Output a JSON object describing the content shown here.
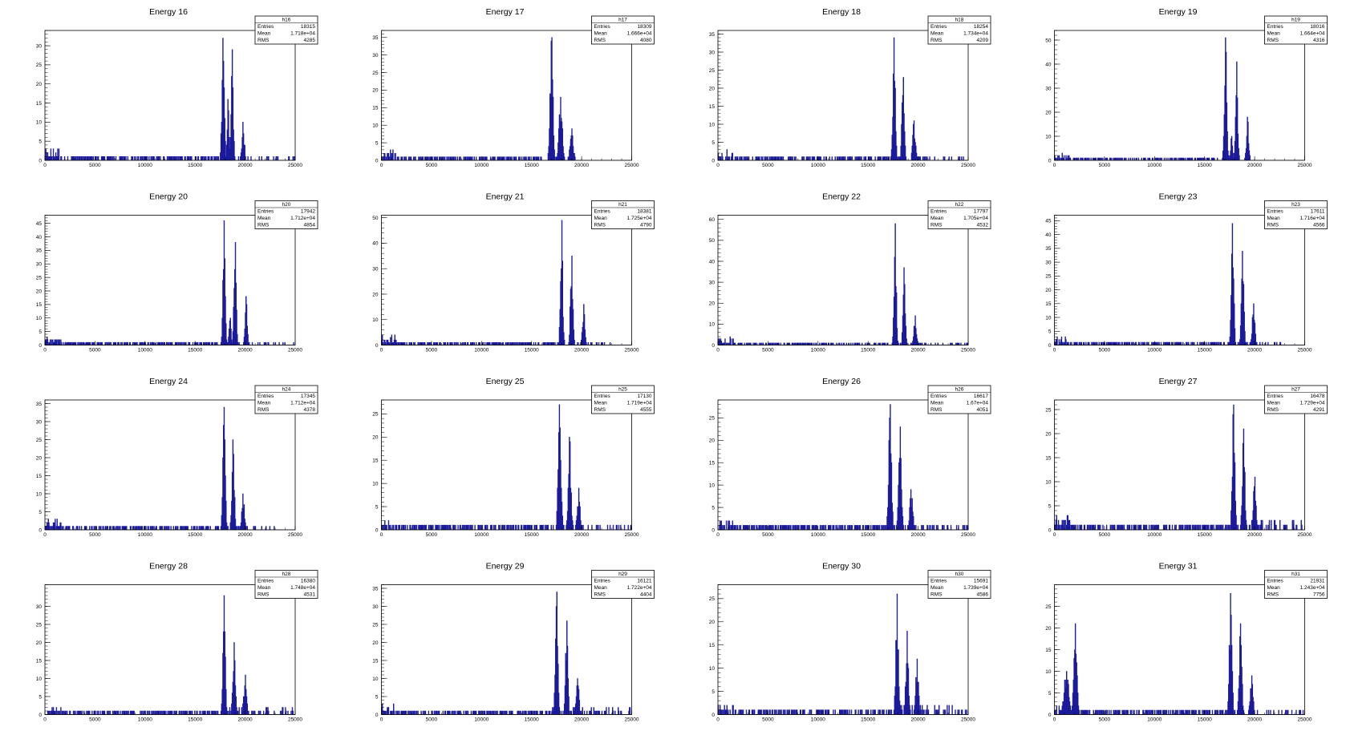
{
  "page": {
    "grid_columns": 4,
    "grid_rows": 4,
    "histogram_color": "#1a1a9a"
  },
  "chart_data": [
    {
      "type": "bar",
      "title": "Energy 16",
      "stats": {
        "name": "h16",
        "entries_label": "Entries",
        "entries": "18315",
        "mean_label": "Mean",
        "mean": "1.718e+04",
        "rms_label": "RMS",
        "rms": "4285"
      },
      "xlim": [
        0,
        25000
      ],
      "ylim": [
        0,
        34
      ],
      "yticks": [
        0,
        5,
        10,
        15,
        20,
        25,
        30
      ],
      "xticks": [
        0,
        5000,
        10000,
        15000,
        20000,
        25000
      ],
      "noise_max": 3,
      "noise_end": 17200,
      "tail_max": 1,
      "tail_end": 25000,
      "peaks": [
        {
          "x": 17800,
          "height": 32,
          "width": 120
        },
        {
          "x": 18700,
          "height": 29,
          "width": 110
        },
        {
          "x": 18300,
          "height": 16,
          "width": 100
        },
        {
          "x": 19800,
          "height": 10,
          "width": 120
        }
      ]
    },
    {
      "type": "bar",
      "title": "Energy 17",
      "stats": {
        "name": "h17",
        "entries_label": "Entries",
        "entries": "18309",
        "mean_label": "Mean",
        "mean": "1.666e+04",
        "rms_label": "RMS",
        "rms": "4080"
      },
      "xlim": [
        0,
        25000
      ],
      "ylim": [
        0,
        37
      ],
      "yticks": [
        0,
        5,
        10,
        15,
        20,
        25,
        30,
        35
      ],
      "xticks": [
        0,
        5000,
        10000,
        15000,
        20000,
        25000
      ],
      "noise_max": 3,
      "noise_end": 16000,
      "tail_max": 0,
      "tail_end": 20000,
      "peaks": [
        {
          "x": 17000,
          "height": 35,
          "width": 140
        },
        {
          "x": 17900,
          "height": 18,
          "width": 170
        },
        {
          "x": 19000,
          "height": 9,
          "width": 150
        }
      ]
    },
    {
      "type": "bar",
      "title": "Energy 18",
      "stats": {
        "name": "h18",
        "entries_label": "Entries",
        "entries": "18254",
        "mean_label": "Mean",
        "mean": "1.734e+04",
        "rms_label": "RMS",
        "rms": "4209"
      },
      "xlim": [
        0,
        25000
      ],
      "ylim": [
        0,
        36
      ],
      "yticks": [
        0,
        5,
        10,
        15,
        20,
        25,
        30,
        35
      ],
      "xticks": [
        0,
        5000,
        10000,
        15000,
        20000,
        25000
      ],
      "noise_max": 3,
      "noise_end": 16800,
      "tail_max": 1,
      "tail_end": 25000,
      "peaks": [
        {
          "x": 17600,
          "height": 34,
          "width": 120
        },
        {
          "x": 18500,
          "height": 23,
          "width": 120
        },
        {
          "x": 19600,
          "height": 11,
          "width": 140
        }
      ]
    },
    {
      "type": "bar",
      "title": "Energy 19",
      "stats": {
        "name": "h19",
        "entries_label": "Entries",
        "entries": "18016",
        "mean_label": "Mean",
        "mean": "1.664e+04",
        "rms_label": "RMS",
        "rms": "4316"
      },
      "xlim": [
        0,
        25000
      ],
      "ylim": [
        0,
        54
      ],
      "yticks": [
        0,
        10,
        20,
        30,
        40,
        50
      ],
      "xticks": [
        0,
        5000,
        10000,
        15000,
        20000,
        25000
      ],
      "noise_max": 3,
      "noise_end": 16300,
      "tail_max": 0,
      "tail_end": 21500,
      "peaks": [
        {
          "x": 17100,
          "height": 51,
          "width": 120
        },
        {
          "x": 18200,
          "height": 41,
          "width": 110
        },
        {
          "x": 19300,
          "height": 18,
          "width": 110
        },
        {
          "x": 17700,
          "height": 10,
          "width": 100
        }
      ]
    },
    {
      "type": "bar",
      "title": "Energy 20",
      "stats": {
        "name": "h20",
        "entries_label": "Entries",
        "entries": "17942",
        "mean_label": "Mean",
        "mean": "1.712e+04",
        "rms_label": "RMS",
        "rms": "4854"
      },
      "xlim": [
        0,
        25000
      ],
      "ylim": [
        0,
        48
      ],
      "yticks": [
        0,
        5,
        10,
        15,
        20,
        25,
        30,
        35,
        40,
        45
      ],
      "xticks": [
        0,
        5000,
        10000,
        15000,
        20000,
        25000
      ],
      "noise_max": 3,
      "noise_end": 17200,
      "tail_max": 1,
      "tail_end": 25000,
      "peaks": [
        {
          "x": 17900,
          "height": 46,
          "width": 110
        },
        {
          "x": 19000,
          "height": 38,
          "width": 110
        },
        {
          "x": 20100,
          "height": 18,
          "width": 110
        },
        {
          "x": 18500,
          "height": 10,
          "width": 100
        }
      ]
    },
    {
      "type": "bar",
      "title": "Energy 21",
      "stats": {
        "name": "h21",
        "entries_label": "Entries",
        "entries": "18381",
        "mean_label": "Mean",
        "mean": "1.725e+04",
        "rms_label": "RMS",
        "rms": "4790"
      },
      "xlim": [
        0,
        25000
      ],
      "ylim": [
        0,
        51
      ],
      "yticks": [
        0,
        10,
        20,
        30,
        40,
        50
      ],
      "xticks": [
        0,
        5000,
        10000,
        15000,
        20000,
        25000
      ],
      "noise_max": 4,
      "noise_end": 17300,
      "tail_max": 1,
      "tail_end": 23000,
      "peaks": [
        {
          "x": 18000,
          "height": 49,
          "width": 110
        },
        {
          "x": 19000,
          "height": 35,
          "width": 120
        },
        {
          "x": 20200,
          "height": 16,
          "width": 120
        }
      ]
    },
    {
      "type": "bar",
      "title": "Energy 22",
      "stats": {
        "name": "h22",
        "entries_label": "Entries",
        "entries": "17797",
        "mean_label": "Mean",
        "mean": "1.705e+04",
        "rms_label": "RMS",
        "rms": "4532"
      },
      "xlim": [
        0,
        25000
      ],
      "ylim": [
        0,
        62
      ],
      "yticks": [
        0,
        10,
        20,
        30,
        40,
        50,
        60
      ],
      "xticks": [
        0,
        5000,
        10000,
        15000,
        20000,
        25000
      ],
      "noise_max": 4,
      "noise_end": 17000,
      "tail_max": 1,
      "tail_end": 25000,
      "peaks": [
        {
          "x": 17700,
          "height": 58,
          "width": 110
        },
        {
          "x": 18600,
          "height": 37,
          "width": 110
        },
        {
          "x": 19700,
          "height": 14,
          "width": 130
        }
      ]
    },
    {
      "type": "bar",
      "title": "Energy 23",
      "stats": {
        "name": "h23",
        "entries_label": "Entries",
        "entries": "17611",
        "mean_label": "Mean",
        "mean": "1.716e+04",
        "rms_label": "RMS",
        "rms": "4566"
      },
      "xlim": [
        0,
        25000
      ],
      "ylim": [
        0,
        47
      ],
      "yticks": [
        0,
        5,
        10,
        15,
        20,
        25,
        30,
        35,
        40,
        45
      ],
      "xticks": [
        0,
        5000,
        10000,
        15000,
        20000,
        25000
      ],
      "noise_max": 3,
      "noise_end": 17000,
      "tail_max": 1,
      "tail_end": 23500,
      "peaks": [
        {
          "x": 17800,
          "height": 44,
          "width": 120
        },
        {
          "x": 18800,
          "height": 34,
          "width": 120
        },
        {
          "x": 19900,
          "height": 15,
          "width": 130
        }
      ]
    },
    {
      "type": "bar",
      "title": "Energy 24",
      "stats": {
        "name": "h24",
        "entries_label": "Entries",
        "entries": "17345",
        "mean_label": "Mean",
        "mean": "1.712e+04",
        "rms_label": "RMS",
        "rms": "4378"
      },
      "xlim": [
        0,
        25000
      ],
      "ylim": [
        0,
        36
      ],
      "yticks": [
        0,
        5,
        10,
        15,
        20,
        25,
        30,
        35
      ],
      "xticks": [
        0,
        5000,
        10000,
        15000,
        20000,
        25000
      ],
      "noise_max": 3,
      "noise_end": 17300,
      "tail_max": 1,
      "tail_end": 23000,
      "peaks": [
        {
          "x": 17900,
          "height": 34,
          "width": 120
        },
        {
          "x": 18800,
          "height": 25,
          "width": 120
        },
        {
          "x": 19800,
          "height": 10,
          "width": 130
        }
      ]
    },
    {
      "type": "bar",
      "title": "Energy 25",
      "stats": {
        "name": "h25",
        "entries_label": "Entries",
        "entries": "17130",
        "mean_label": "Mean",
        "mean": "1.719e+04",
        "rms_label": "RMS",
        "rms": "4555"
      },
      "xlim": [
        0,
        25000
      ],
      "ylim": [
        0,
        28
      ],
      "yticks": [
        0,
        5,
        10,
        15,
        20,
        25
      ],
      "xticks": [
        0,
        5000,
        10000,
        15000,
        20000,
        25000
      ],
      "noise_max": 2,
      "noise_end": 17200,
      "tail_max": 1,
      "tail_end": 25000,
      "peaks": [
        {
          "x": 17800,
          "height": 27,
          "width": 140
        },
        {
          "x": 18800,
          "height": 20,
          "width": 140
        },
        {
          "x": 19700,
          "height": 9,
          "width": 140
        }
      ]
    },
    {
      "type": "bar",
      "title": "Energy 26",
      "stats": {
        "name": "h26",
        "entries_label": "Entries",
        "entries": "16617",
        "mean_label": "Mean",
        "mean": "1.67e+04",
        "rms_label": "RMS",
        "rms": "4051"
      },
      "xlim": [
        0,
        25000
      ],
      "ylim": [
        0,
        29
      ],
      "yticks": [
        0,
        5,
        10,
        15,
        20,
        25
      ],
      "xticks": [
        0,
        5000,
        10000,
        15000,
        20000,
        25000
      ],
      "noise_max": 2,
      "noise_end": 16500,
      "tail_max": 1,
      "tail_end": 25000,
      "peaks": [
        {
          "x": 17200,
          "height": 28,
          "width": 140
        },
        {
          "x": 18200,
          "height": 23,
          "width": 140
        },
        {
          "x": 19300,
          "height": 9,
          "width": 150
        }
      ]
    },
    {
      "type": "bar",
      "title": "Energy 27",
      "stats": {
        "name": "h27",
        "entries_label": "Entries",
        "entries": "16478",
        "mean_label": "Mean",
        "mean": "1.729e+04",
        "rms_label": "RMS",
        "rms": "4291"
      },
      "xlim": [
        0,
        25000
      ],
      "ylim": [
        0,
        27
      ],
      "yticks": [
        0,
        5,
        10,
        15,
        20,
        25
      ],
      "xticks": [
        0,
        5000,
        10000,
        15000,
        20000,
        25000
      ],
      "noise_max": 3,
      "noise_end": 17300,
      "tail_max": 2,
      "tail_end": 25000,
      "peaks": [
        {
          "x": 17900,
          "height": 26,
          "width": 130
        },
        {
          "x": 18900,
          "height": 21,
          "width": 130
        },
        {
          "x": 20000,
          "height": 11,
          "width": 130
        }
      ]
    },
    {
      "type": "bar",
      "title": "Energy 28",
      "stats": {
        "name": "h28",
        "entries_label": "Entries",
        "entries": "16380",
        "mean_label": "Mean",
        "mean": "1.748e+04",
        "rms_label": "RMS",
        "rms": "4531"
      },
      "xlim": [
        0,
        25000
      ],
      "ylim": [
        0,
        36
      ],
      "yticks": [
        0,
        5,
        10,
        15,
        20,
        25,
        30
      ],
      "xticks": [
        0,
        5000,
        10000,
        15000,
        20000,
        25000
      ],
      "noise_max": 2,
      "noise_end": 17300,
      "tail_max": 2,
      "tail_end": 25000,
      "peaks": [
        {
          "x": 17900,
          "height": 33,
          "width": 120
        },
        {
          "x": 18900,
          "height": 20,
          "width": 130
        },
        {
          "x": 20000,
          "height": 11,
          "width": 140
        }
      ]
    },
    {
      "type": "bar",
      "title": "Energy 29",
      "stats": {
        "name": "h29",
        "entries_label": "Entries",
        "entries": "16121",
        "mean_label": "Mean",
        "mean": "1.722e+04",
        "rms_label": "RMS",
        "rms": "4404"
      },
      "xlim": [
        0,
        25000
      ],
      "ylim": [
        0,
        36
      ],
      "yticks": [
        0,
        5,
        10,
        15,
        20,
        25,
        30,
        35
      ],
      "xticks": [
        0,
        5000,
        10000,
        15000,
        20000,
        25000
      ],
      "noise_max": 3,
      "noise_end": 17000,
      "tail_max": 2,
      "tail_end": 25000,
      "peaks": [
        {
          "x": 17500,
          "height": 34,
          "width": 120
        },
        {
          "x": 18500,
          "height": 26,
          "width": 120
        },
        {
          "x": 19600,
          "height": 10,
          "width": 140
        }
      ]
    },
    {
      "type": "bar",
      "title": "Energy 30",
      "stats": {
        "name": "h30",
        "entries_label": "Entries",
        "entries": "15691",
        "mean_label": "Mean",
        "mean": "1.739e+04",
        "rms_label": "RMS",
        "rms": "4586"
      },
      "xlim": [
        0,
        25000
      ],
      "ylim": [
        0,
        28
      ],
      "yticks": [
        0,
        5,
        10,
        15,
        20,
        25
      ],
      "xticks": [
        0,
        5000,
        10000,
        15000,
        20000,
        25000
      ],
      "noise_max": 2,
      "noise_end": 17200,
      "tail_max": 2,
      "tail_end": 25000,
      "peaks": [
        {
          "x": 17900,
          "height": 26,
          "width": 130
        },
        {
          "x": 18900,
          "height": 18,
          "width": 130
        },
        {
          "x": 19900,
          "height": 12,
          "width": 140
        }
      ]
    },
    {
      "type": "bar",
      "title": "Energy 31",
      "stats": {
        "name": "h31",
        "entries_label": "Entries",
        "entries": "21931",
        "mean_label": "Mean",
        "mean": "1.243e+04",
        "rms_label": "RMS",
        "rms": "7756"
      },
      "xlim": [
        0,
        25000
      ],
      "ylim": [
        0,
        30
      ],
      "yticks": [
        0,
        5,
        10,
        15,
        20,
        25
      ],
      "xticks": [
        0,
        5000,
        10000,
        15000,
        20000,
        25000
      ],
      "noise_max": 2,
      "noise_end": 17200,
      "tail_max": 1,
      "tail_end": 25000,
      "low_peaks": [
        {
          "x": 2100,
          "height": 21,
          "width": 160
        },
        {
          "x": 1200,
          "height": 10,
          "width": 250
        }
      ],
      "peaks": [
        {
          "x": 17600,
          "height": 28,
          "width": 130
        },
        {
          "x": 18600,
          "height": 21,
          "width": 130
        },
        {
          "x": 19700,
          "height": 9,
          "width": 140
        }
      ]
    }
  ]
}
